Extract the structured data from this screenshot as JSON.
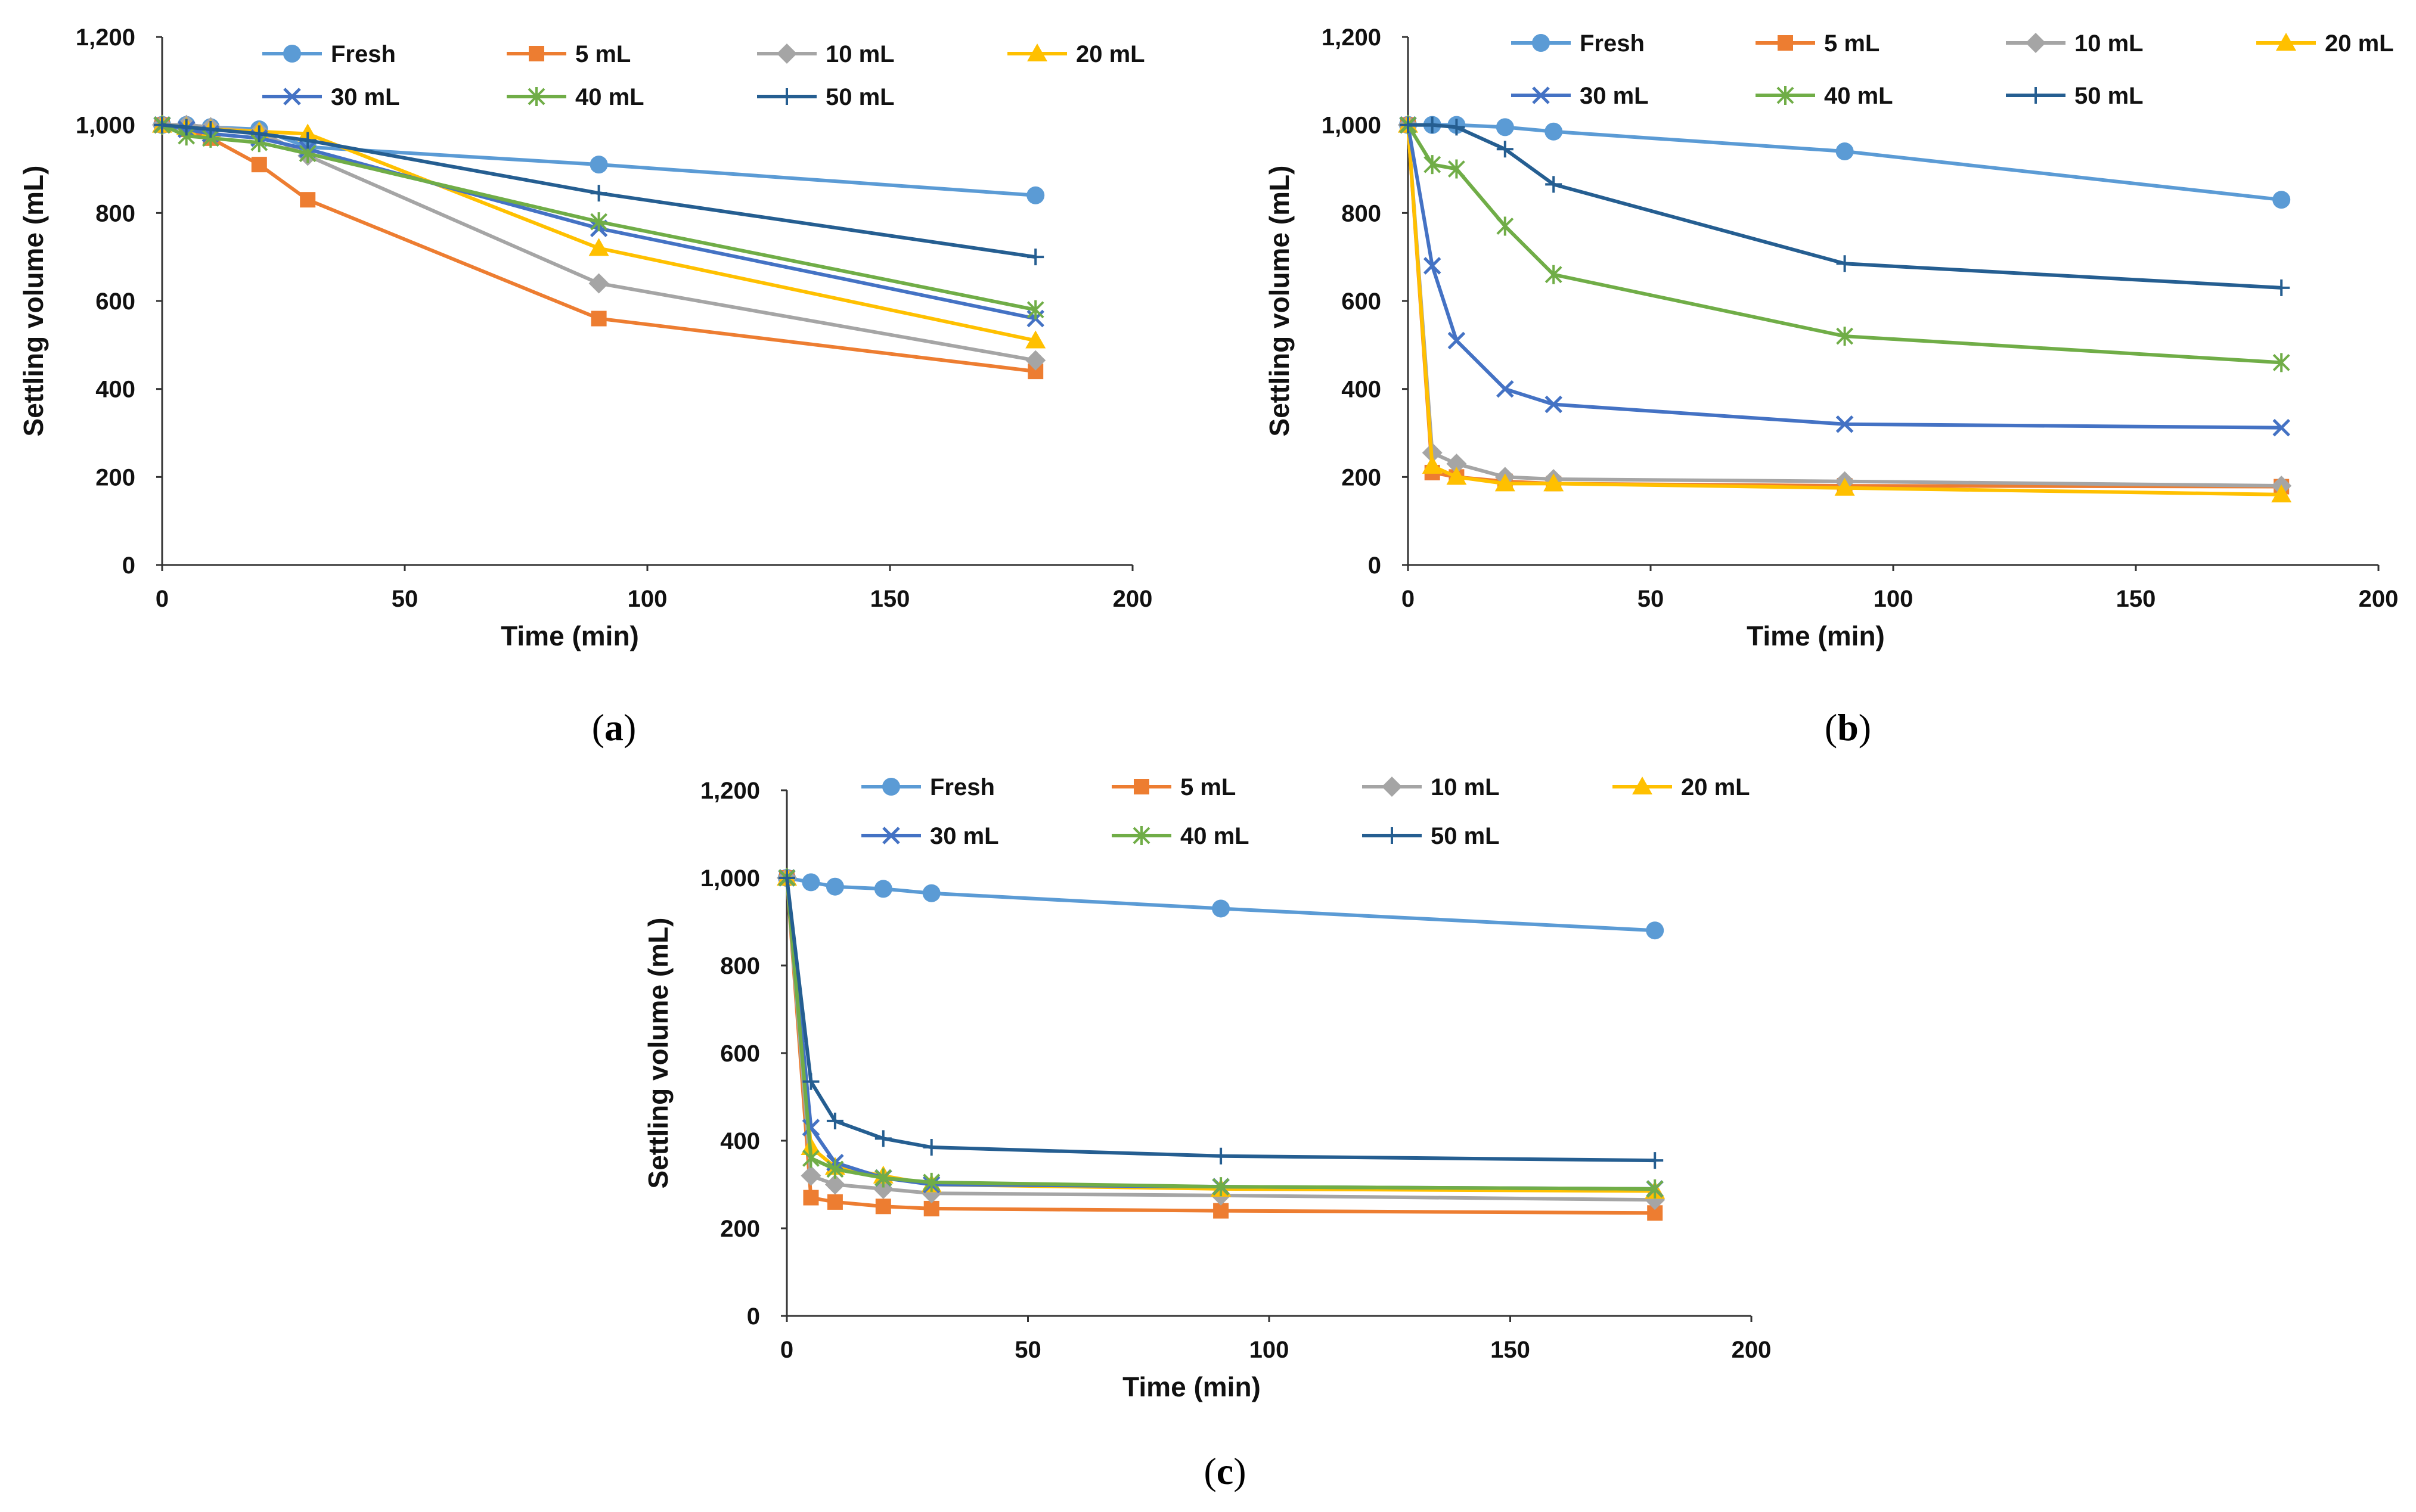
{
  "chart_data": [
    {
      "type": "line",
      "panel_label": "a",
      "xlabel": "Time (min)",
      "ylabel": "Settling volume (mL)",
      "xlim": [
        0,
        200
      ],
      "ylim": [
        0,
        1200
      ],
      "xticks": [
        0,
        50,
        100,
        150,
        200
      ],
      "yticks": [
        0,
        200,
        400,
        600,
        800,
        1000,
        1200
      ],
      "ytick_labels": [
        "0",
        "200",
        "400",
        "600",
        "800",
        "1,000",
        "1,200"
      ],
      "x": [
        0,
        5,
        10,
        20,
        30,
        90,
        180
      ],
      "series": [
        {
          "name": "Fresh",
          "values": [
            1000,
            1000,
            995,
            990,
            950,
            910,
            840
          ]
        },
        {
          "name": "5 mL",
          "values": [
            1000,
            990,
            970,
            910,
            830,
            560,
            440
          ]
        },
        {
          "name": "10 mL",
          "values": [
            1000,
            1000,
            995,
            985,
            930,
            640,
            465
          ]
        },
        {
          "name": "20 mL",
          "values": [
            1000,
            995,
            990,
            985,
            980,
            720,
            510
          ]
        },
        {
          "name": "30 mL",
          "values": [
            1000,
            990,
            980,
            970,
            945,
            765,
            560
          ]
        },
        {
          "name": "40 mL",
          "values": [
            1000,
            975,
            970,
            960,
            935,
            780,
            580
          ]
        },
        {
          "name": "50 mL",
          "values": [
            1000,
            995,
            990,
            980,
            965,
            845,
            700
          ]
        }
      ]
    },
    {
      "type": "line",
      "panel_label": "b",
      "xlabel": "Time (min)",
      "ylabel": "Settling volume (mL)",
      "xlim": [
        0,
        200
      ],
      "ylim": [
        0,
        1200
      ],
      "xticks": [
        0,
        50,
        100,
        150,
        200
      ],
      "yticks": [
        0,
        200,
        400,
        600,
        800,
        1000,
        1200
      ],
      "ytick_labels": [
        "0",
        "200",
        "400",
        "600",
        "800",
        "1,000",
        "1,200"
      ],
      "x": [
        0,
        5,
        10,
        20,
        30,
        90,
        180
      ],
      "series": [
        {
          "name": "Fresh",
          "values": [
            1000,
            1000,
            1000,
            995,
            985,
            940,
            830
          ]
        },
        {
          "name": "5 mL",
          "values": [
            1000,
            210,
            200,
            190,
            185,
            180,
            178
          ]
        },
        {
          "name": "10 mL",
          "values": [
            1000,
            255,
            230,
            200,
            195,
            190,
            180
          ]
        },
        {
          "name": "20 mL",
          "values": [
            1000,
            225,
            200,
            185,
            185,
            175,
            160
          ]
        },
        {
          "name": "30 mL",
          "values": [
            1000,
            680,
            510,
            400,
            365,
            320,
            312
          ]
        },
        {
          "name": "40 mL",
          "values": [
            1000,
            910,
            900,
            770,
            660,
            520,
            460
          ]
        },
        {
          "name": "50 mL",
          "values": [
            1000,
            1000,
            995,
            945,
            865,
            685,
            630
          ]
        }
      ]
    },
    {
      "type": "line",
      "panel_label": "c",
      "xlabel": "Time (min)",
      "ylabel": "Settling volume (mL)",
      "xlim": [
        0,
        200
      ],
      "ylim": [
        0,
        1200
      ],
      "xticks": [
        0,
        50,
        100,
        150,
        200
      ],
      "yticks": [
        0,
        200,
        400,
        600,
        800,
        1000,
        1200
      ],
      "ytick_labels": [
        "0",
        "200",
        "400",
        "600",
        "800",
        "1,000",
        "1,200"
      ],
      "x": [
        0,
        5,
        10,
        20,
        30,
        90,
        180
      ],
      "series": [
        {
          "name": "Fresh",
          "values": [
            1000,
            990,
            980,
            975,
            965,
            930,
            880
          ]
        },
        {
          "name": "5 mL",
          "values": [
            1000,
            270,
            260,
            250,
            245,
            240,
            235
          ]
        },
        {
          "name": "10 mL",
          "values": [
            1000,
            320,
            300,
            290,
            280,
            275,
            265
          ]
        },
        {
          "name": "20 mL",
          "values": [
            1000,
            385,
            340,
            320,
            300,
            290,
            285
          ]
        },
        {
          "name": "30 mL",
          "values": [
            1000,
            430,
            350,
            315,
            300,
            295,
            290
          ]
        },
        {
          "name": "40 mL",
          "values": [
            1000,
            360,
            335,
            315,
            305,
            295,
            290
          ]
        },
        {
          "name": "50 mL",
          "values": [
            1000,
            535,
            445,
            405,
            385,
            365,
            355
          ]
        }
      ]
    }
  ],
  "series_styles": [
    {
      "name": "Fresh",
      "color": "#5b9bd5",
      "marker": "circle"
    },
    {
      "name": "5 mL",
      "color": "#ed7d31",
      "marker": "square"
    },
    {
      "name": "10 mL",
      "color": "#a5a5a5",
      "marker": "diamond"
    },
    {
      "name": "20 mL",
      "color": "#ffc000",
      "marker": "triangle"
    },
    {
      "name": "30 mL",
      "color": "#4472c4",
      "marker": "x"
    },
    {
      "name": "40 mL",
      "color": "#70ad47",
      "marker": "star"
    },
    {
      "name": "50 mL",
      "color": "#255e91",
      "marker": "plus"
    }
  ]
}
